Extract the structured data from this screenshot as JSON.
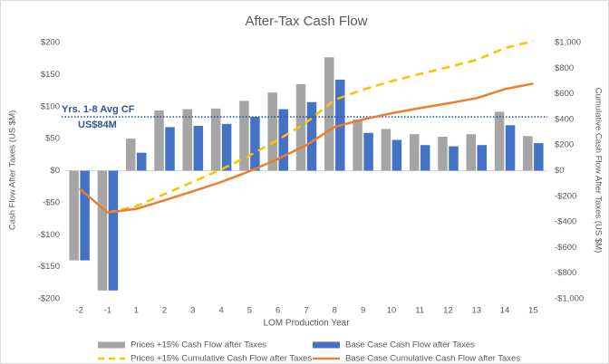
{
  "chart_data": {
    "type": "bar",
    "title": "After-Tax Cash Flow",
    "x_label": "LOM Production Year",
    "y_label": "Cash Flow After Taxes (US $M)",
    "y2_label": "Cumulative Cash Flow After Taxes (US $M)",
    "categories": [
      "-2",
      "-1",
      "1",
      "2",
      "3",
      "4",
      "5",
      "6",
      "7",
      "8",
      "9",
      "10",
      "11",
      "12",
      "13",
      "14",
      "15"
    ],
    "series": [
      {
        "name": "Prices +15% Cash Flow after Taxes",
        "kind": "bar",
        "color": "#a5a5a5",
        "values": [
          -140,
          -187,
          50,
          94,
          96,
          97,
          109,
          122,
          135,
          177,
          80,
          65,
          57,
          53,
          57,
          92,
          54
        ]
      },
      {
        "name": "Base Case Cash Flow after Taxes",
        "kind": "bar",
        "color": "#4472c4",
        "values": [
          -140,
          -187,
          28,
          68,
          70,
          73,
          84,
          96,
          107,
          142,
          59,
          48,
          40,
          38,
          40,
          71,
          43
        ]
      },
      {
        "name": "Prices +15% Cumulative Cash Flow after Taxes",
        "kind": "line",
        "dashed": true,
        "axis": "y2",
        "color": "#ffc000",
        "values": [
          null,
          -327,
          -277,
          -183,
          -87,
          10,
          119,
          241,
          376,
          553,
          633,
          698,
          755,
          808,
          865,
          957,
          1011
        ]
      },
      {
        "name": "Base Case Cumulative Cash Flow after Taxes",
        "kind": "line",
        "dashed": false,
        "axis": "y2",
        "color": "#ed7d31",
        "values": [
          -140,
          -327,
          -299,
          -231,
          -161,
          -88,
          -4,
          92,
          199,
          341,
          400,
          448,
          488,
          526,
          566,
          637,
          680
        ]
      }
    ],
    "reference_line": {
      "value": 84,
      "label": "Yrs. 1-8 Avg CF",
      "value_label": "US$84M",
      "color": "#2f5597"
    },
    "ylim": [
      -200,
      200
    ],
    "yticks": [
      {
        "value": -200,
        "label": "-$200"
      },
      {
        "value": -150,
        "label": "-$150"
      },
      {
        "value": -100,
        "label": "-$100"
      },
      {
        "value": -50,
        "label": "-$50"
      },
      {
        "value": 0,
        "label": "$0"
      },
      {
        "value": 50,
        "label": "$50"
      },
      {
        "value": 100,
        "label": "$100"
      },
      {
        "value": 150,
        "label": "$150"
      },
      {
        "value": 200,
        "label": "$200"
      }
    ],
    "y2lim": [
      -1000,
      1000
    ],
    "y2ticks": [
      {
        "value": -1000,
        "label": "-$1,000"
      },
      {
        "value": -800,
        "label": "-$800"
      },
      {
        "value": -600,
        "label": "-$600"
      },
      {
        "value": -400,
        "label": "-$400"
      },
      {
        "value": -200,
        "label": "-$200"
      },
      {
        "value": 0,
        "label": "$0"
      },
      {
        "value": 200,
        "label": "$200"
      },
      {
        "value": 400,
        "label": "$400"
      },
      {
        "value": 600,
        "label": "$600"
      },
      {
        "value": 800,
        "label": "$800"
      },
      {
        "value": 1000,
        "label": "$1,000"
      }
    ],
    "grid": false
  }
}
